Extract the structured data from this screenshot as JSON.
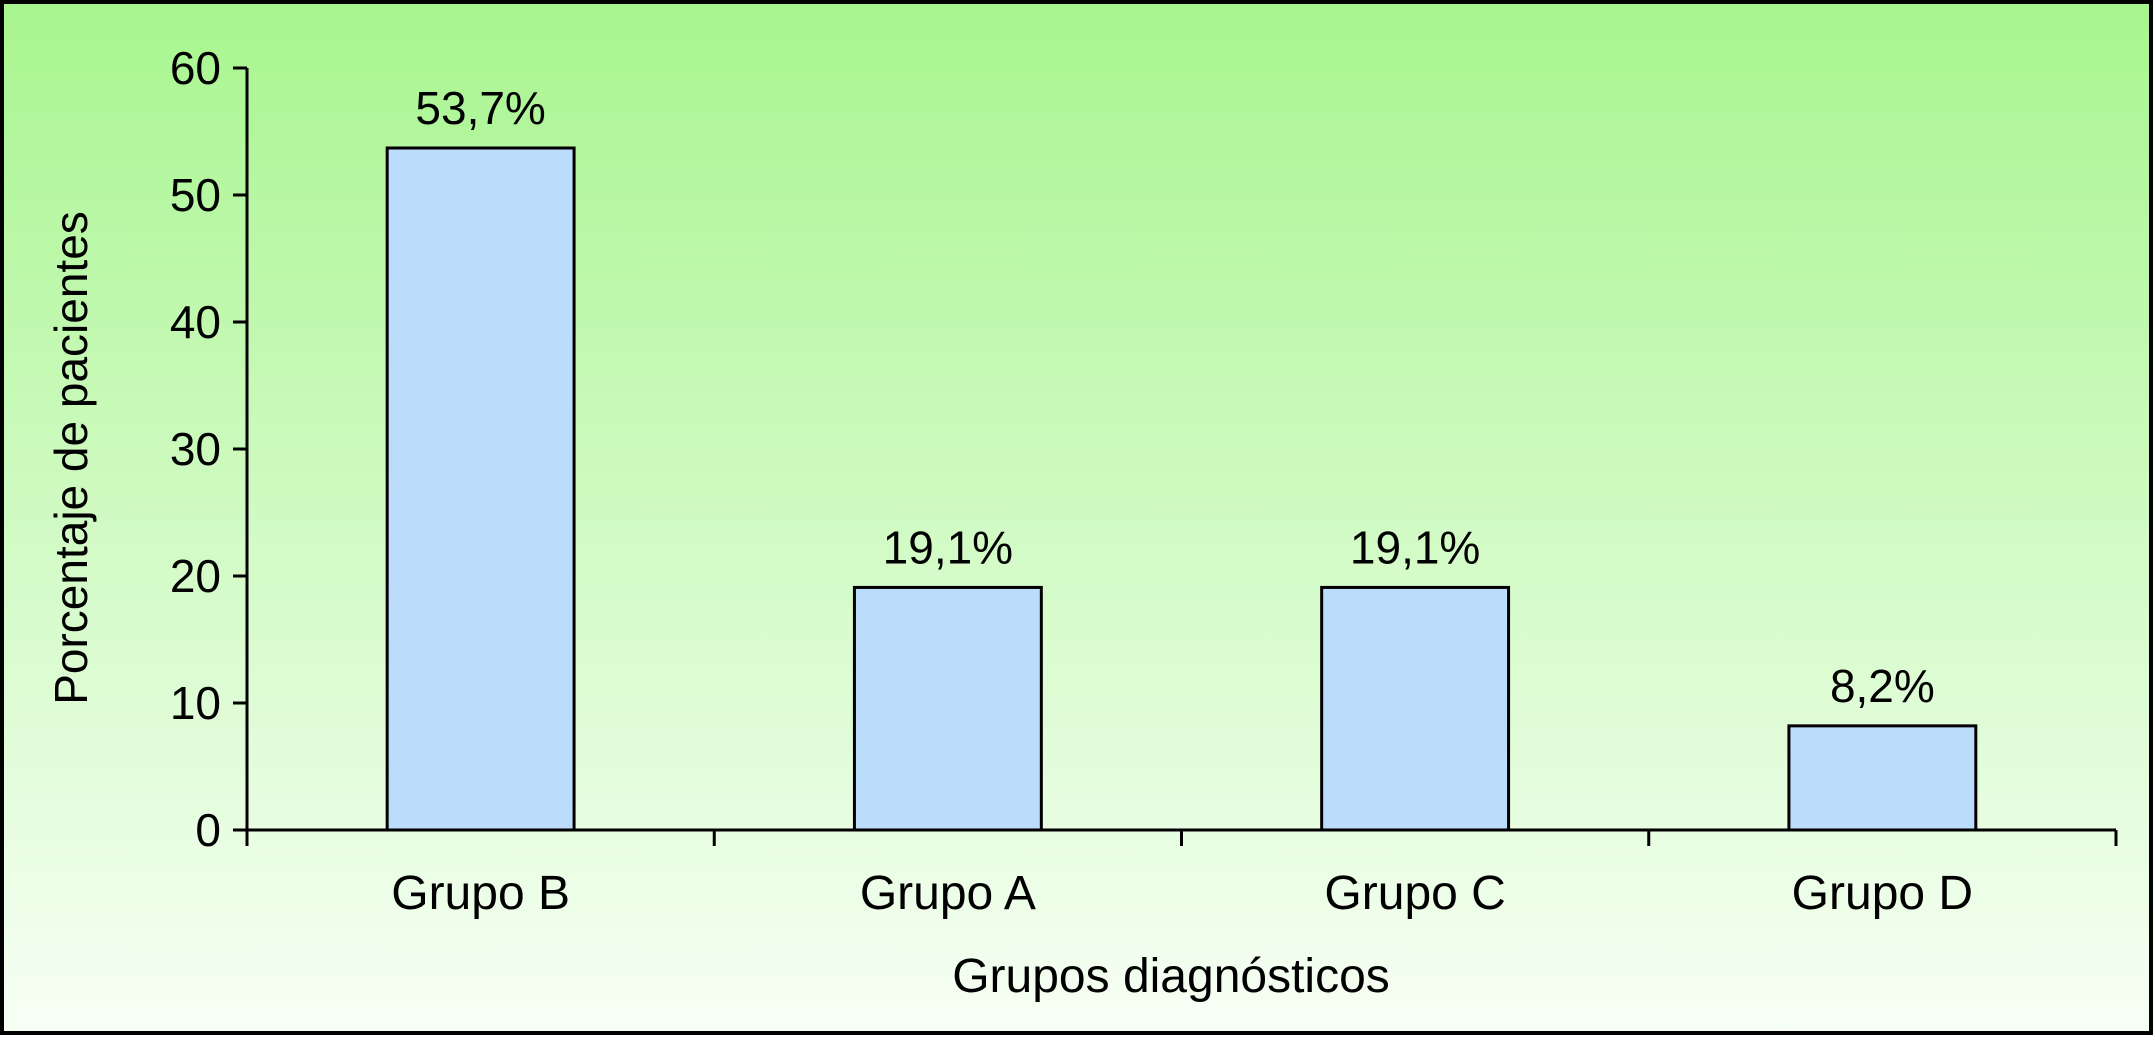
{
  "chart_data": {
    "type": "bar",
    "categories": [
      "Grupo B",
      "Grupo A",
      "Grupo C",
      "Grupo D"
    ],
    "values": [
      53.7,
      19.1,
      19.1,
      8.2
    ],
    "data_labels": [
      "53,7%",
      "19,1%",
      "19,1%",
      "8,2%"
    ],
    "xlabel": "Grupos diagnósticos",
    "ylabel": "Porcentaje de pacientes",
    "ylim": [
      0,
      60
    ],
    "yticks": [
      0,
      10,
      20,
      30,
      40,
      50,
      60
    ],
    "grid": false,
    "legend": "none",
    "colors": {
      "bar_fill": "#bcdcfb",
      "bar_stroke": "#000000",
      "background_top": "#a8f58f",
      "background_bottom": "#f7fff5"
    }
  }
}
